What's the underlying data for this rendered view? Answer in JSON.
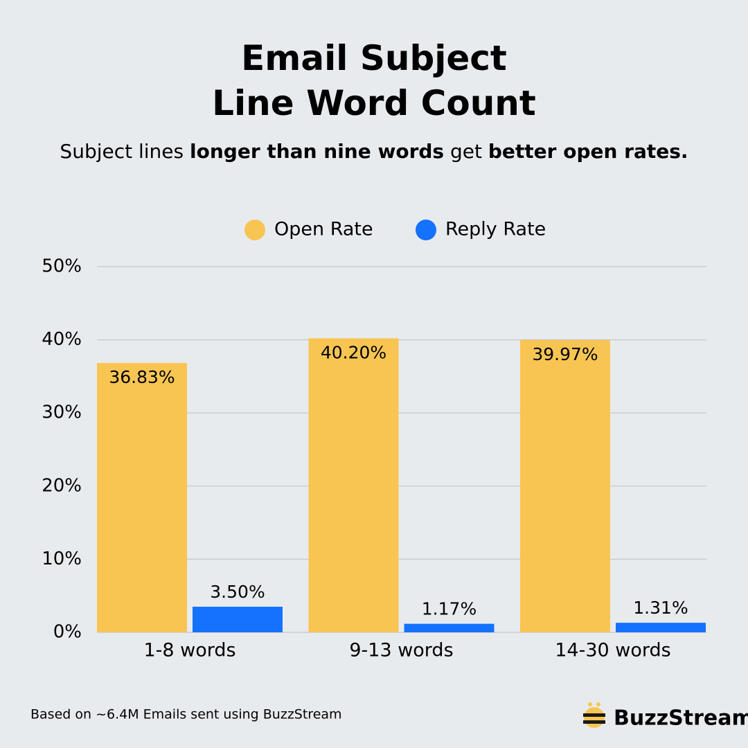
{
  "chart_data": {
    "type": "bar",
    "title": "Email Subject Line Word Count",
    "subtitle": [
      {
        "text": "Subject lines ",
        "bold": false
      },
      {
        "text": "longer than nine words",
        "bold": true
      },
      {
        "text": " get ",
        "bold": false
      },
      {
        "text": "better open rates.",
        "bold": true
      }
    ],
    "categories": [
      "1-8 words",
      "9-13 words",
      "14-30 words"
    ],
    "series": [
      {
        "name": "Open Rate",
        "color": "#f8c553",
        "values": [
          36.83,
          40.2,
          39.97
        ],
        "value_labels": [
          "36.83%",
          "40.20%",
          "39.97%"
        ]
      },
      {
        "name": "Reply Rate",
        "color": "#1472ff",
        "values": [
          3.5,
          1.17,
          1.31
        ],
        "value_labels": [
          "3.50%",
          "1.17%",
          "1.31%"
        ]
      }
    ],
    "ylim": [
      0,
      50
    ],
    "yticks": [
      {
        "value": 0,
        "label": "0%"
      },
      {
        "value": 10,
        "label": "10%"
      },
      {
        "value": 20,
        "label": "20%"
      },
      {
        "value": 30,
        "label": "30%"
      },
      {
        "value": 40,
        "label": "40%"
      },
      {
        "value": 50,
        "label": "50%"
      }
    ],
    "grid": true,
    "footnote": "Based on ~6.4M Emails sent using BuzzStream",
    "logo": "BuzzStream"
  }
}
